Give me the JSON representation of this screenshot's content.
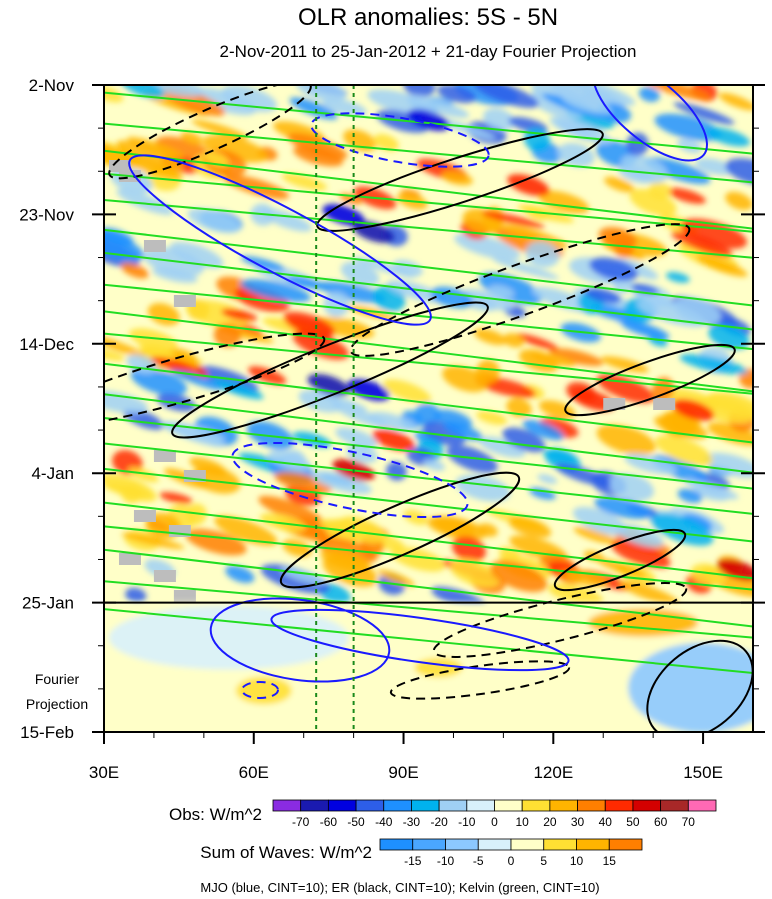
{
  "chart_data": {
    "type": "heatmap",
    "title": "OLR anomalies: 5S - 5N",
    "subtitle": "2-Nov-2011 to 25-Jan-2012 + 21-day Fourier Projection",
    "x_axis": {
      "range": [
        30,
        160
      ],
      "ticks": [
        30,
        60,
        90,
        120,
        150
      ],
      "tick_labels": [
        "30E",
        "60E",
        "90E",
        "120E",
        "150E"
      ]
    },
    "y_axis": {
      "start": "2-Nov-2011",
      "end": "15-Feb-2012",
      "ticks": [
        "2-Nov-2011",
        "23-Nov-2011",
        "14-Dec-2011",
        "4-Jan-2012",
        "25-Jan-2012",
        "15-Feb-2012"
      ],
      "tick_labels": [
        "2-Nov",
        "23-Nov",
        "14-Dec",
        "4-Jan",
        "25-Jan",
        "15-Feb"
      ]
    },
    "projection_start": "25-Jan-2012",
    "projection_label": [
      "Fourier",
      "Projection"
    ],
    "reference_longitudes": [
      72.5,
      80
    ],
    "obs_colorbar": {
      "label": "Obs: W/m^2",
      "levels": [
        -70,
        -60,
        -50,
        -40,
        -30,
        -20,
        -10,
        0,
        10,
        20,
        30,
        40,
        50,
        60,
        70
      ],
      "colors": [
        "#8a2be2",
        "#1a1ab0",
        "#0000e0",
        "#2d5ee8",
        "#1e90ff",
        "#00b2ee",
        "#9fd0f5",
        "#d8f1fb",
        "#ffffc8",
        "#ffe033",
        "#ffb400",
        "#ff7f00",
        "#ff2a00",
        "#d40000",
        "#a82828",
        "#ff69b4"
      ]
    },
    "waves_colorbar": {
      "label": "Sum of Waves: W/m^2",
      "levels": [
        -15,
        -10,
        -5,
        0,
        5,
        10,
        15
      ],
      "colors": [
        "#1e90ff",
        "#4aa6ff",
        "#8cc8ff",
        "#d8f1fb",
        "#ffffc8",
        "#ffe033",
        "#ffb400",
        "#ff7f00"
      ]
    },
    "contours": [
      {
        "name": "MJO",
        "color": "#1a1aff",
        "cint": 10
      },
      {
        "name": "ER",
        "color": "#000000",
        "cint": 10
      },
      {
        "name": "Kelvin",
        "color": "#22dd22",
        "cint": 10
      }
    ],
    "legend_note": "MJO (blue, CINT=10); ER (black, CINT=10); Kelvin (green, CINT=10)"
  }
}
